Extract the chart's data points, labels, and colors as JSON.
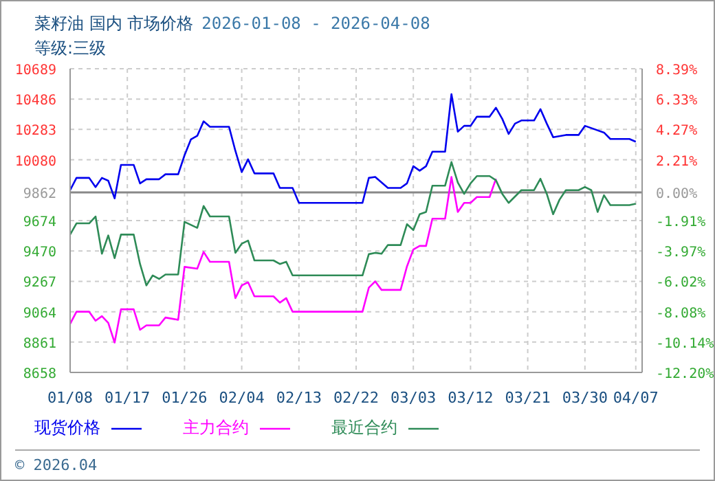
{
  "chart_data": {
    "type": "line",
    "title": "菜籽油 国内 市场价格",
    "subtitle": "2026-01-08 - 2026-04-08",
    "annotations": [
      "等级:三级",
      "© 2026.04"
    ],
    "xlim": [
      "2026-01-08",
      "2026-04-08"
    ],
    "xticks": [
      {
        "value": "2026-01-08",
        "label": "01/08"
      },
      {
        "value": "2026-01-17",
        "label": "01/17"
      },
      {
        "value": "2026-01-26",
        "label": "01/26"
      },
      {
        "value": "2026-02-04",
        "label": "02/04"
      },
      {
        "value": "2026-02-13",
        "label": "02/13"
      },
      {
        "value": "2026-02-22",
        "label": "02/22"
      },
      {
        "value": "2026-03-03",
        "label": "03/03"
      },
      {
        "value": "2026-03-12",
        "label": "03/12"
      },
      {
        "value": "2026-03-21",
        "label": "03/21"
      },
      {
        "value": "2026-03-30",
        "label": "03/30"
      },
      {
        "value": "2026-04-07",
        "label": "04/07"
      }
    ],
    "ylim": [
      8658,
      10689
    ],
    "yticks": [
      8658,
      8861,
      9064,
      9267,
      9470,
      9674,
      9862,
      10080,
      10283,
      10486,
      10689
    ],
    "y2lim": [
      -12.2,
      8.39
    ],
    "y2ticks": [
      {
        "value": -12.2,
        "label": "-12.20%"
      },
      {
        "value": -10.14,
        "label": "-10.14%"
      },
      {
        "value": -8.08,
        "label": "-8.08%"
      },
      {
        "value": -6.02,
        "label": "-6.02%"
      },
      {
        "value": -3.97,
        "label": "-3.97%"
      },
      {
        "value": -1.91,
        "label": "-1.91%"
      },
      {
        "value": 0,
        "label": "0.00%"
      },
      {
        "value": 2.21,
        "label": "2.21%"
      },
      {
        "value": 4.27,
        "label": "4.27%"
      },
      {
        "value": 6.33,
        "label": "6.33%"
      },
      {
        "value": 8.39,
        "label": "8.39%"
      }
    ],
    "ref_lines": [
      {
        "axis": "y2",
        "value": 0,
        "color": "#888888"
      }
    ],
    "grid": true,
    "legend": "bottom left",
    "line_style": "solid",
    "series": [
      {
        "name": "现货价格",
        "color": "#0000ee",
        "x": [
          "2026-01-08",
          "2026-01-09",
          "2026-01-11",
          "2026-01-12",
          "2026-01-13",
          "2026-01-14",
          "2026-01-15",
          "2026-01-16",
          "2026-01-18",
          "2026-01-19",
          "2026-01-20",
          "2026-01-22",
          "2026-01-23",
          "2026-01-25",
          "2026-01-26",
          "2026-01-27",
          "2026-01-28",
          "2026-01-29",
          "2026-01-30",
          "2026-02-02",
          "2026-02-03",
          "2026-02-04",
          "2026-02-05",
          "2026-02-06",
          "2026-02-09",
          "2026-02-10",
          "2026-02-12",
          "2026-02-13",
          "2026-02-23",
          "2026-02-24",
          "2026-02-25",
          "2026-02-27",
          "2026-03-01",
          "2026-03-02",
          "2026-03-03",
          "2026-03-04",
          "2026-03-05",
          "2026-03-06",
          "2026-03-08",
          "2026-03-09",
          "2026-03-10",
          "2026-03-11",
          "2026-03-12",
          "2026-03-13",
          "2026-03-15",
          "2026-03-16",
          "2026-03-17",
          "2026-03-18",
          "2026-03-19",
          "2026-03-20",
          "2026-03-22",
          "2026-03-23",
          "2026-03-24",
          "2026-03-25",
          "2026-03-27",
          "2026-03-29",
          "2026-03-30",
          "2026-03-31",
          "2026-04-02",
          "2026-04-03",
          "2026-04-06",
          "2026-04-07"
        ],
        "values": [
          9877,
          9959,
          9959,
          9898,
          9959,
          9940,
          9822,
          10046,
          10046,
          9922,
          9950,
          9950,
          9983,
          9983,
          10110,
          10216,
          10240,
          10337,
          10301,
          10301,
          10140,
          9998,
          10083,
          9989,
          9989,
          9892,
          9892,
          9792,
          9792,
          9959,
          9965,
          9892,
          9892,
          9922,
          10037,
          10007,
          10037,
          10134,
          10134,
          10519,
          10268,
          10307,
          10307,
          10368,
          10368,
          10428,
          10353,
          10253,
          10322,
          10343,
          10343,
          10419,
          10322,
          10231,
          10246,
          10246,
          10307,
          10292,
          10262,
          10219,
          10219,
          10201
        ]
      },
      {
        "name": "主力合约",
        "color": "#ff00ff",
        "x": [
          "2026-01-08",
          "2026-01-09",
          "2026-01-11",
          "2026-01-12",
          "2026-01-13",
          "2026-01-14",
          "2026-01-15",
          "2026-01-16",
          "2026-01-18",
          "2026-01-19",
          "2026-01-20",
          "2026-01-22",
          "2026-01-23",
          "2026-01-25",
          "2026-01-26",
          "2026-01-28",
          "2026-01-29",
          "2026-01-30",
          "2026-02-02",
          "2026-02-03",
          "2026-02-04",
          "2026-02-05",
          "2026-02-06",
          "2026-02-09",
          "2026-02-10",
          "2026-02-11",
          "2026-02-12",
          "2026-02-13",
          "2026-02-23",
          "2026-02-24",
          "2026-02-25",
          "2026-02-26",
          "2026-03-01",
          "2026-03-02",
          "2026-03-03",
          "2026-03-04",
          "2026-03-05",
          "2026-03-06",
          "2026-03-08",
          "2026-03-09",
          "2026-03-10",
          "2026-03-11",
          "2026-03-12",
          "2026-03-13",
          "2026-03-15",
          "2026-03-16"
        ],
        "values": [
          8983,
          9064,
          9064,
          9004,
          9034,
          8989,
          8858,
          9080,
          9080,
          8943,
          8973,
          8973,
          9025,
          9010,
          9364,
          9352,
          9464,
          9398,
          9398,
          9155,
          9240,
          9261,
          9167,
          9167,
          9125,
          9155,
          9064,
          9064,
          9064,
          9225,
          9267,
          9210,
          9210,
          9367,
          9480,
          9504,
          9504,
          9686,
          9686,
          9965,
          9731,
          9792,
          9792,
          9831,
          9831,
          9953
        ]
      },
      {
        "name": "最近合约",
        "color": "#2e8b57",
        "x": [
          "2026-01-08",
          "2026-01-09",
          "2026-01-11",
          "2026-01-12",
          "2026-01-13",
          "2026-01-14",
          "2026-01-15",
          "2026-01-16",
          "2026-01-18",
          "2026-01-19",
          "2026-01-20",
          "2026-01-21",
          "2026-01-22",
          "2026-01-23",
          "2026-01-25",
          "2026-01-26",
          "2026-01-28",
          "2026-01-29",
          "2026-01-30",
          "2026-02-02",
          "2026-02-03",
          "2026-02-04",
          "2026-02-05",
          "2026-02-06",
          "2026-02-09",
          "2026-02-10",
          "2026-02-11",
          "2026-02-12",
          "2026-02-13",
          "2026-02-23",
          "2026-02-24",
          "2026-02-25",
          "2026-02-26",
          "2026-02-27",
          "2026-03-01",
          "2026-03-02",
          "2026-03-03",
          "2026-03-04",
          "2026-03-05",
          "2026-03-06",
          "2026-03-08",
          "2026-03-09",
          "2026-03-10",
          "2026-03-11",
          "2026-03-12",
          "2026-03-13",
          "2026-03-15",
          "2026-03-16",
          "2026-03-17",
          "2026-03-18",
          "2026-03-20",
          "2026-03-22",
          "2026-03-23",
          "2026-03-24",
          "2026-03-25",
          "2026-03-26",
          "2026-03-27",
          "2026-03-29",
          "2026-03-30",
          "2026-03-31",
          "2026-04-01",
          "2026-04-02",
          "2026-04-03",
          "2026-04-06",
          "2026-04-07"
        ],
        "values": [
          9580,
          9655,
          9655,
          9701,
          9452,
          9574,
          9422,
          9580,
          9580,
          9383,
          9240,
          9307,
          9283,
          9313,
          9313,
          9665,
          9625,
          9771,
          9701,
          9701,
          9458,
          9519,
          9540,
          9407,
          9407,
          9383,
          9398,
          9307,
          9307,
          9307,
          9449,
          9458,
          9452,
          9510,
          9510,
          9649,
          9610,
          9716,
          9731,
          9907,
          9907,
          10065,
          9928,
          9852,
          9922,
          9971,
          9971,
          9943,
          9852,
          9792,
          9877,
          9877,
          9953,
          9852,
          9716,
          9813,
          9877,
          9877,
          9898,
          9877,
          9731,
          9843,
          9777,
          9777,
          9786
        ]
      }
    ]
  }
}
